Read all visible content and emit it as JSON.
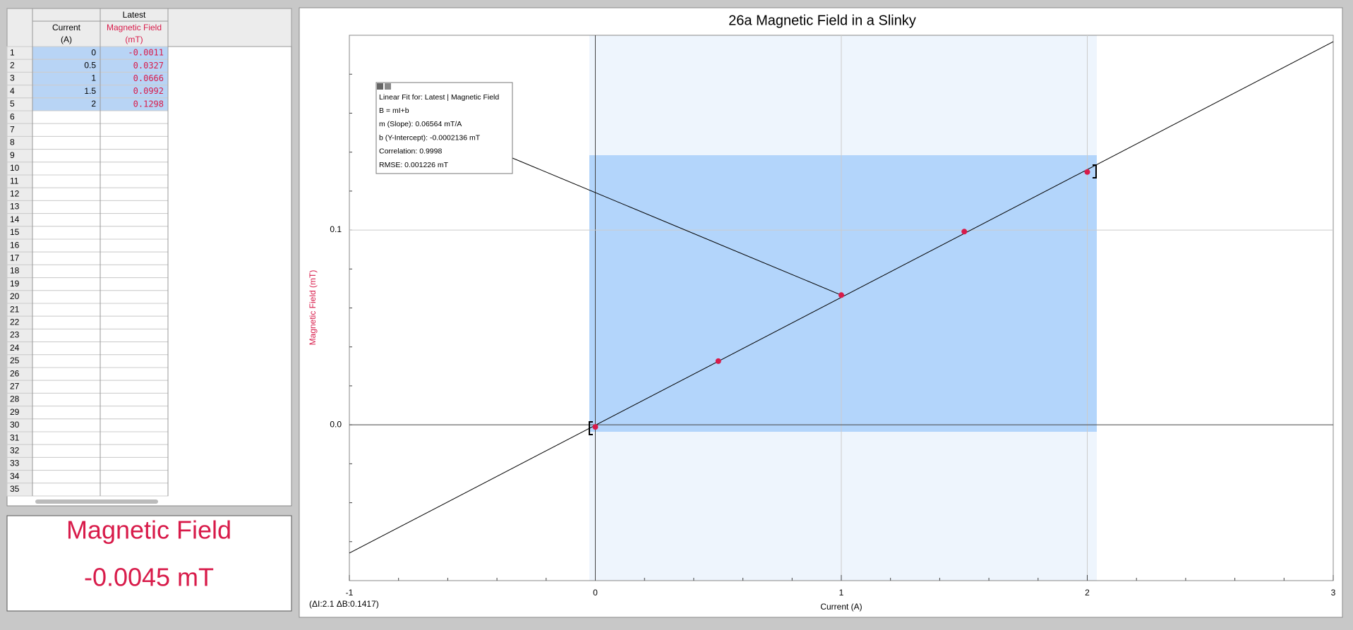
{
  "table": {
    "group": "Latest",
    "columns": [
      {
        "name": "Current",
        "unit": "(A)"
      },
      {
        "name": "Magnetic Field",
        "unit": "(mT)"
      }
    ],
    "row_numbers": [
      1,
      2,
      3,
      4,
      5,
      6,
      7,
      8,
      9,
      10,
      11,
      12,
      13,
      14,
      15,
      16,
      17,
      18,
      19,
      20,
      21,
      22,
      23,
      24,
      25,
      26,
      27,
      28,
      29,
      30,
      31,
      32,
      33,
      34,
      35
    ],
    "rows": [
      [
        0,
        -0.0011
      ],
      [
        0.5,
        0.0327
      ],
      [
        1,
        0.0666
      ],
      [
        1.5,
        0.0992
      ],
      [
        2,
        0.1298
      ]
    ]
  },
  "meter": {
    "label": "Magnetic Field",
    "value": "-0.0045 mT"
  },
  "chart_data": {
    "type": "scatter",
    "title": "26a Magnetic Field in a Slinky",
    "x_label": "Current (A)",
    "y_label": "Magnetic Field (mT)",
    "x": [
      0,
      0.5,
      1,
      1.5,
      2
    ],
    "series": [
      {
        "name": "Magnetic Field",
        "color": "#d81b4a",
        "values": [
          -0.0011,
          0.0327,
          0.0666,
          0.0992,
          0.1298
        ]
      }
    ],
    "xlim": [
      -1,
      3
    ],
    "ylim": [
      -0.08,
      0.2
    ],
    "xticks": [
      -1,
      0,
      1,
      2,
      3
    ],
    "yticks": [
      {
        "value": 0,
        "label": "0.0"
      },
      {
        "value": 0.1,
        "label": "0.1"
      }
    ],
    "grid": true,
    "fit": {
      "slope": 0.06564,
      "intercept": -0.0002136
    },
    "fit_box": [
      "Linear Fit for: Latest | Magnetic Field",
      "B = mI+b",
      "m (Slope): 0.06564 mT/A",
      "b (Y-Intercept): -0.0002136 mT",
      "Correlation: 0.9998",
      "RMSE: 0.001226 mT"
    ],
    "annotation": "(ΔI:2.1 ΔB:0.1417)"
  }
}
